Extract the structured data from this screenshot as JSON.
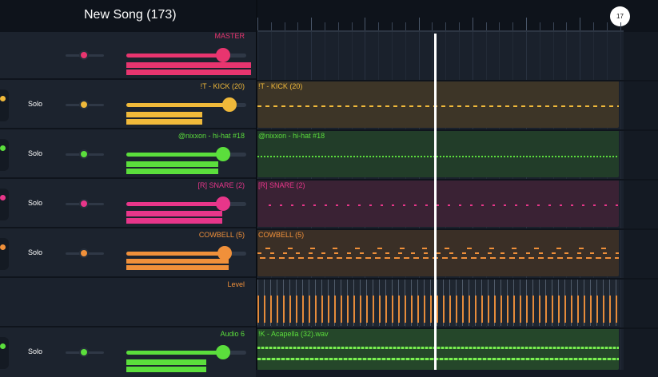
{
  "song": {
    "title": "New Song (173)",
    "badge": "17"
  },
  "colors": {
    "master": "#e8356f",
    "kick": "#f0b93a",
    "hihat": "#5bde3c",
    "snare": "#e8368a",
    "cowbell": "#f0903a",
    "level": "#f0903a",
    "audio": "#5bde3c"
  },
  "tracks": [
    {
      "id": "master",
      "name": "MASTER",
      "solo": "",
      "pan": 0.5,
      "volume": 0.85
    },
    {
      "id": "kick",
      "name": "!T - KICK (20)",
      "solo": "Solo",
      "pan": 0.5,
      "volume": 0.87,
      "region_label": "!T - KICK (20)"
    },
    {
      "id": "hihat",
      "name": "@nixxon - hi-hat #18",
      "solo": "Solo",
      "pan": 0.5,
      "volume": 0.8,
      "region_label": "@nixxon - hi-hat #18"
    },
    {
      "id": "snare",
      "name": "[R] SNARE (2)",
      "solo": "Solo",
      "pan": 0.5,
      "volume": 0.8,
      "region_label": "[R] SNARE (2)"
    },
    {
      "id": "cowbell",
      "name": "COWBELL (5)",
      "solo": "Solo",
      "pan": 0.5,
      "volume": 0.82,
      "region_label": "COWBELL (5)"
    },
    {
      "id": "level",
      "name": "Level"
    },
    {
      "id": "audio",
      "name": "Audio 6",
      "solo": "Solo",
      "pan": 0.5,
      "volume": 0.8,
      "region_label": "!K - Acapella (32).wav"
    }
  ]
}
